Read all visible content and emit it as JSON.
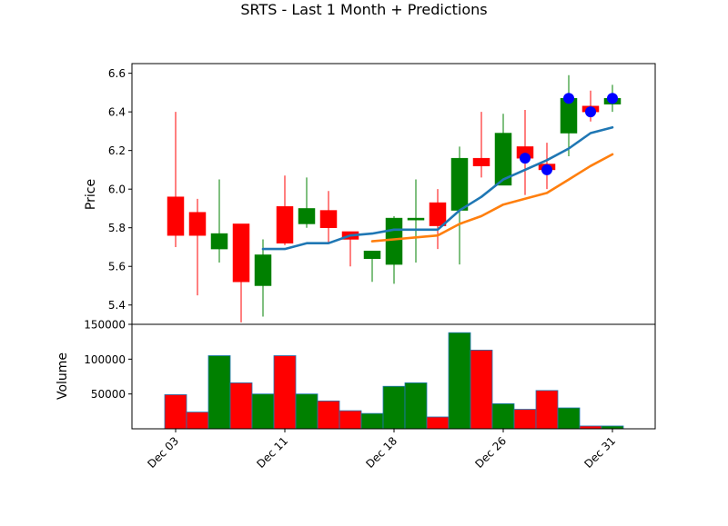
{
  "chart_data": {
    "type": "candlestick",
    "title": "SRTS - Last 1 Month + Predictions",
    "price_panel": {
      "ylabel": "Price",
      "ylim": [
        5.3,
        6.65
      ],
      "yticks": [
        5.4,
        5.6,
        5.8,
        6.0,
        6.2,
        6.4,
        6.6
      ],
      "ytick_labels": [
        "5.4",
        "5.6",
        "5.8",
        "6.0",
        "6.2",
        "6.4",
        "6.6"
      ]
    },
    "volume_panel": {
      "ylabel": "Volume",
      "ylim": [
        0,
        150000
      ],
      "yticks": [
        50000,
        100000,
        150000
      ],
      "ytick_labels": [
        "50000",
        "100000",
        "150000"
      ]
    },
    "x_ticks": [
      {
        "index": 0,
        "label": "Dec 03"
      },
      {
        "index": 5,
        "label": "Dec 11"
      },
      {
        "index": 10,
        "label": "Dec 18"
      },
      {
        "index": 15,
        "label": "Dec 26"
      },
      {
        "index": 20,
        "label": "Dec 31"
      }
    ],
    "candles": [
      {
        "open": 5.96,
        "high": 6.4,
        "low": 5.7,
        "close": 5.76,
        "volume": 49000
      },
      {
        "open": 5.88,
        "high": 5.95,
        "low": 5.45,
        "close": 5.76,
        "volume": 24000
      },
      {
        "open": 5.69,
        "high": 6.05,
        "low": 5.62,
        "close": 5.77,
        "volume": 105000
      },
      {
        "open": 5.82,
        "high": 5.82,
        "low": 5.31,
        "close": 5.52,
        "volume": 66000
      },
      {
        "open": 5.5,
        "high": 5.74,
        "low": 5.34,
        "close": 5.66,
        "volume": 50000
      },
      {
        "open": 5.91,
        "high": 6.07,
        "low": 5.71,
        "close": 5.72,
        "volume": 105000
      },
      {
        "open": 5.82,
        "high": 6.06,
        "low": 5.8,
        "close": 5.9,
        "volume": 50000
      },
      {
        "open": 5.89,
        "high": 5.99,
        "low": 5.72,
        "close": 5.8,
        "volume": 40000
      },
      {
        "open": 5.78,
        "high": 5.78,
        "low": 5.6,
        "close": 5.74,
        "volume": 26000
      },
      {
        "open": 5.64,
        "high": 5.68,
        "low": 5.52,
        "close": 5.68,
        "volume": 22000
      },
      {
        "open": 5.61,
        "high": 5.86,
        "low": 5.51,
        "close": 5.85,
        "volume": 61000
      },
      {
        "open": 5.84,
        "high": 6.05,
        "low": 5.62,
        "close": 5.85,
        "volume": 66000
      },
      {
        "open": 5.93,
        "high": 6.0,
        "low": 5.69,
        "close": 5.81,
        "volume": 17000
      },
      {
        "open": 5.89,
        "high": 6.22,
        "low": 5.61,
        "close": 6.16,
        "volume": 138000
      },
      {
        "open": 6.16,
        "high": 6.4,
        "low": 6.06,
        "close": 6.12,
        "volume": 113000
      },
      {
        "open": 6.02,
        "high": 6.39,
        "low": 6.02,
        "close": 6.29,
        "volume": 36000
      },
      {
        "open": 6.22,
        "high": 6.41,
        "low": 5.97,
        "close": 6.16,
        "volume": 28000
      },
      {
        "open": 6.13,
        "high": 6.24,
        "low": 6.0,
        "close": 6.1,
        "volume": 55000
      },
      {
        "open": 6.29,
        "high": 6.59,
        "low": 6.17,
        "close": 6.47,
        "volume": 30000
      },
      {
        "open": 6.43,
        "high": 6.51,
        "low": 6.35,
        "close": 6.4,
        "volume": 4000
      },
      {
        "open": 6.44,
        "high": 6.54,
        "low": 6.4,
        "close": 6.47,
        "volume": 4000
      }
    ],
    "series": [
      {
        "color": "#1f77b4",
        "start_index": 4,
        "values": [
          5.69,
          5.69,
          5.72,
          5.72,
          5.76,
          5.77,
          5.79,
          5.79,
          5.79,
          5.89,
          5.96,
          6.05,
          6.1,
          6.15,
          6.21,
          6.29,
          6.32
        ]
      },
      {
        "color": "#ff7f0e",
        "start_index": 9,
        "values": [
          5.73,
          5.74,
          5.75,
          5.76,
          5.82,
          5.86,
          5.92,
          5.95,
          5.98,
          6.05,
          6.12,
          6.18
        ]
      }
    ],
    "markers": [
      {
        "index": 16,
        "value": 6.16
      },
      {
        "index": 17,
        "value": 6.1
      },
      {
        "index": 18,
        "value": 6.47
      },
      {
        "index": 19,
        "value": 6.4
      },
      {
        "index": 20,
        "value": 6.47
      }
    ],
    "colors": {
      "up": "#008000",
      "down": "#ff0000",
      "marker": "#0000ff",
      "volume_edge": "#1f77b4"
    }
  }
}
